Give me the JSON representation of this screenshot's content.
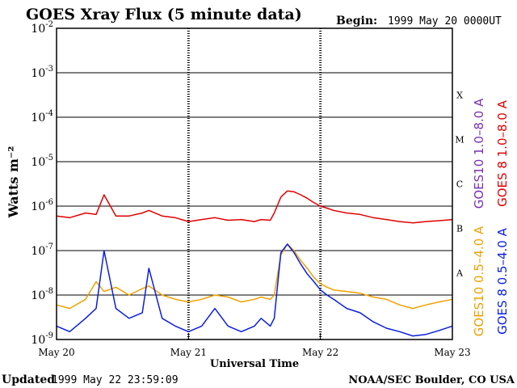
{
  "header": {
    "title": "GOES Xray Flux (5 minute data)",
    "begin_label": "Begin:",
    "begin_value": "1999 May 20 0000UT"
  },
  "footer": {
    "updated_label": "Updated",
    "updated_value": "1999 May 22 23:59:09",
    "credit": "NOAA/SEC Boulder, CO USA"
  },
  "colors": {
    "goes10_long": "#7a2fb5",
    "goes8_long": "#e00000",
    "goes10_short": "#f0a000",
    "goes8_short": "#0a1ee0",
    "frame": "#000000"
  },
  "chart_data": {
    "type": "line",
    "title": "GOES Xray Flux (5 minute data)",
    "xlabel": "Universal Time",
    "ylabel": "Watts m⁻²",
    "yscale": "log",
    "ylim": [
      1e-09,
      0.01
    ],
    "xlim": [
      0,
      3
    ],
    "x_tick_labels": [
      "May 20",
      "May 21",
      "May 22",
      "May 23"
    ],
    "y_tick_exponents": [
      -2,
      -3,
      -4,
      -5,
      -6,
      -7,
      -8,
      -9
    ],
    "flare_classes": [
      {
        "label": "X",
        "threshold": 0.0001
      },
      {
        "label": "M",
        "threshold": 1e-05
      },
      {
        "label": "C",
        "threshold": 1e-06
      },
      {
        "label": "B",
        "threshold": 1e-07
      },
      {
        "label": "A",
        "threshold": 1e-08
      }
    ],
    "grid": "horizontal lines at each decade; dashed verticals at day boundaries",
    "legend_placement": "right side, vertical",
    "legend": [
      {
        "text": "GOES10 1.0–8.0 A",
        "color": "#7a2fb5"
      },
      {
        "text": "GOES 8 1.0–8.0 A",
        "color": "#e00000"
      },
      {
        "text": "GOES10 0.5–4.0 A",
        "color": "#f0a000"
      },
      {
        "text": "GOES 8 0.5–4.0 A",
        "color": "#0a1ee0"
      }
    ],
    "series": [
      {
        "name": "GOES 8 1.0–8.0 A",
        "color": "#e00000",
        "x": [
          0,
          0.1,
          0.22,
          0.3,
          0.36,
          0.45,
          0.55,
          0.65,
          0.7,
          0.8,
          0.9,
          1.0,
          1.1,
          1.2,
          1.3,
          1.4,
          1.5,
          1.55,
          1.62,
          1.65,
          1.7,
          1.75,
          1.8,
          1.85,
          1.9,
          1.95,
          2.0,
          2.05,
          2.1,
          2.2,
          2.3,
          2.4,
          2.5,
          2.6,
          2.7,
          2.8,
          2.9,
          3.0
        ],
        "y": [
          6e-07,
          5.5e-07,
          7e-07,
          6.5e-07,
          1.8e-06,
          6e-07,
          6e-07,
          7e-07,
          8e-07,
          6e-07,
          5.5e-07,
          4.5e-07,
          5e-07,
          5.5e-07,
          4.8e-07,
          5e-07,
          4.5e-07,
          5e-07,
          4.8e-07,
          7e-07,
          1.6e-06,
          2.2e-06,
          2.1e-06,
          1.8e-06,
          1.5e-06,
          1.2e-06,
          1e-06,
          9e-07,
          8e-07,
          7e-07,
          6.5e-07,
          5.5e-07,
          5e-07,
          4.5e-07,
          4.2e-07,
          4.5e-07,
          4.7e-07,
          5e-07
        ]
      },
      {
        "name": "GOES10 0.5–4.0 A",
        "color": "#f0a000",
        "x": [
          0,
          0.1,
          0.22,
          0.3,
          0.36,
          0.45,
          0.55,
          0.65,
          0.7,
          0.8,
          0.9,
          1.0,
          1.1,
          1.2,
          1.3,
          1.4,
          1.5,
          1.55,
          1.62,
          1.65,
          1.7,
          1.75,
          1.8,
          1.85,
          1.9,
          1.95,
          2.0,
          2.05,
          2.1,
          2.2,
          2.3,
          2.4,
          2.5,
          2.6,
          2.7,
          2.8,
          2.9,
          3.0
        ],
        "y": [
          6e-09,
          5e-09,
          8e-09,
          2e-08,
          1.2e-08,
          1.5e-08,
          1e-08,
          1.4e-08,
          1.6e-08,
          1e-08,
          8e-09,
          7e-09,
          8e-09,
          1e-08,
          9e-09,
          7e-09,
          8e-09,
          9e-09,
          8e-09,
          1e-08,
          8e-08,
          1.4e-07,
          1e-07,
          6e-08,
          4e-08,
          2.5e-08,
          1.8e-08,
          1.5e-08,
          1.3e-08,
          1.2e-08,
          1.1e-08,
          9e-09,
          8e-09,
          6e-09,
          5e-09,
          6e-09,
          7e-09,
          8e-09
        ]
      },
      {
        "name": "GOES 8 0.5–4.0 A",
        "color": "#0a1ee0",
        "x": [
          0,
          0.1,
          0.22,
          0.3,
          0.36,
          0.45,
          0.55,
          0.65,
          0.7,
          0.8,
          0.9,
          1.0,
          1.1,
          1.2,
          1.3,
          1.4,
          1.5,
          1.55,
          1.62,
          1.65,
          1.7,
          1.75,
          1.8,
          1.85,
          1.9,
          1.95,
          2.0,
          2.05,
          2.1,
          2.2,
          2.3,
          2.4,
          2.5,
          2.6,
          2.7,
          2.8,
          2.9,
          3.0
        ],
        "y": [
          2e-09,
          1.5e-09,
          3e-09,
          5e-09,
          1e-07,
          5e-09,
          3e-09,
          4e-09,
          4e-08,
          3e-09,
          2e-09,
          1.5e-09,
          2e-09,
          5e-09,
          2e-09,
          1.5e-09,
          2e-09,
          3e-09,
          2e-09,
          3e-09,
          9e-08,
          1.4e-07,
          9e-08,
          5e-08,
          3e-08,
          2e-08,
          1.3e-08,
          1e-08,
          8e-09,
          5e-09,
          4e-09,
          2.5e-09,
          1.8e-09,
          1.5e-09,
          1.2e-09,
          1.3e-09,
          1.6e-09,
          2e-09
        ]
      }
    ]
  }
}
